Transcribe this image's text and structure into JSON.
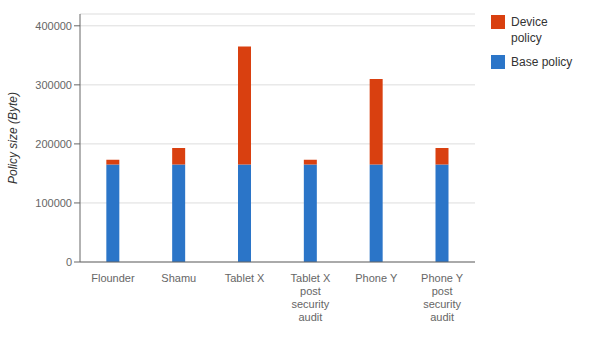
{
  "chart_data": {
    "type": "bar",
    "stacked": true,
    "categories": [
      "Flounder",
      "Shamu",
      "Tablet X",
      "Tablet X\npost\nsecurity\naudit",
      "Phone Y",
      "Phone Y\npost\nsecurity\naudit"
    ],
    "series": [
      {
        "name": "Base policy",
        "color": "#2B75C8",
        "values": [
          165000,
          165000,
          165000,
          165000,
          165000,
          165000
        ]
      },
      {
        "name": "Device\npolicy",
        "color": "#D94010",
        "values": [
          8000,
          28000,
          200000,
          8000,
          145000,
          28000
        ]
      }
    ],
    "ylabel": "Policy size (Byte)",
    "ylim": [
      0,
      420000
    ],
    "yticks": [
      0,
      100000,
      200000,
      300000,
      400000
    ],
    "grid": true,
    "legend": "upper right"
  }
}
